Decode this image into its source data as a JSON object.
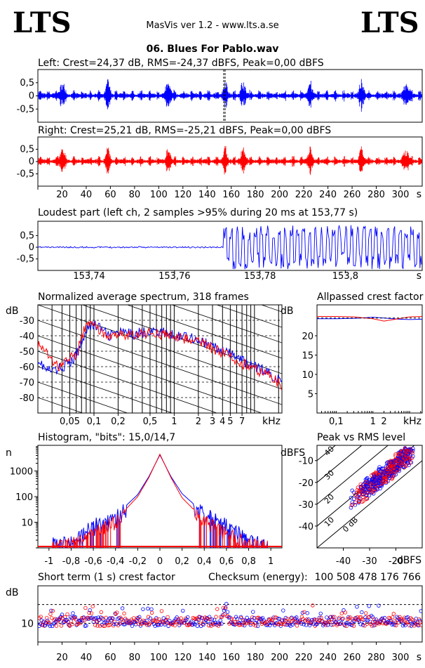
{
  "header": {
    "brand_left": "LTS",
    "brand_right": "LTS",
    "app_title": "MasVis ver 1.2 - www.lts.a.se",
    "file_name": "06. Blues For Pablo.wav"
  },
  "colors": {
    "left": "#0000ff",
    "right": "#ff0000",
    "axis": "#000000"
  },
  "chart_data": [
    {
      "type": "line",
      "id": "left_waveform",
      "title": "Left: Crest=24,37 dB, RMS=-24,37 dBFS, Peak=0,00 dBFS",
      "y_ticks": [
        0.5,
        0,
        -0.5
      ],
      "y_tick_labels": [
        "0,5",
        "0",
        "-0,5"
      ],
      "ylim": [
        -1,
        1
      ],
      "xlim": [
        0,
        318
      ],
      "marker_x": 153.77,
      "peak_times": [
        20,
        58,
        108,
        155,
        170,
        225,
        268,
        305
      ]
    },
    {
      "type": "line",
      "id": "right_waveform",
      "title": "Right: Crest=25,21 dB, RMS=-25,21 dBFS, Peak=0,00 dBFS",
      "y_ticks": [
        0.5,
        0,
        -0.5
      ],
      "y_tick_labels": [
        "0,5",
        "0",
        "-0,5"
      ],
      "ylim": [
        -1,
        1
      ],
      "xlim": [
        0,
        318
      ],
      "x_ticks": [
        20,
        40,
        60,
        80,
        100,
        120,
        140,
        160,
        180,
        200,
        220,
        240,
        260,
        280,
        300
      ],
      "x_unit": "s"
    },
    {
      "type": "line",
      "id": "loudest_part",
      "title": "Loudest part (left  ch, 2 samples >95% during 20 ms at 153,77 s)",
      "y_tick_labels": [
        "0,5",
        "0",
        "-0,5"
      ],
      "ylim": [
        -1,
        1
      ],
      "xlim": [
        153.728,
        153.818
      ],
      "x_ticks": [
        153.74,
        153.76,
        153.78,
        153.8
      ],
      "x_tick_labels": [
        "153,74",
        "153,76",
        "153,78",
        "153,8"
      ],
      "x_unit": "s",
      "onset_x": 153.7715
    },
    {
      "type": "line",
      "id": "spectrum",
      "title": "Normalized average spectrum, 318 frames",
      "ylabel": "dB",
      "y_ticks": [
        -30,
        -40,
        -50,
        -60,
        -70,
        -80
      ],
      "ylim": [
        -90,
        -20
      ],
      "x_scale": "log",
      "xlim": [
        0.02,
        22
      ],
      "x_ticks": [
        0.05,
        0.1,
        0.2,
        0.5,
        1,
        2,
        3,
        4,
        5,
        7
      ],
      "x_tick_labels": [
        "0,05",
        "0,1",
        "0,2",
        "0,5",
        "1",
        "2",
        "3",
        "4",
        "5",
        "7"
      ],
      "x_unit": "kHz",
      "series": [
        {
          "color": "#0000ff",
          "x": [
            0.02,
            0.025,
            0.03,
            0.035,
            0.04,
            0.05,
            0.06,
            0.07,
            0.08,
            0.1,
            0.12,
            0.15,
            0.2,
            0.3,
            0.5,
            0.7,
            1,
            1.5,
            2,
            3,
            4,
            5,
            7,
            10,
            15,
            22
          ],
          "values": [
            -55,
            -62,
            -63,
            -62,
            -60,
            -58,
            -53,
            -45,
            -35,
            -33,
            -35,
            -40,
            -38,
            -39,
            -37,
            -38,
            -40,
            -40,
            -43,
            -47,
            -50,
            -52,
            -56,
            -60,
            -64,
            -70
          ]
        },
        {
          "color": "#ff0000",
          "x": [
            0.02,
            0.025,
            0.03,
            0.035,
            0.04,
            0.05,
            0.06,
            0.07,
            0.08,
            0.1,
            0.12,
            0.15,
            0.2,
            0.3,
            0.5,
            0.7,
            1,
            1.5,
            2,
            3,
            4,
            5,
            7,
            10,
            15,
            22
          ],
          "values": [
            -45,
            -49,
            -55,
            -60,
            -58,
            -55,
            -52,
            -42,
            -32,
            -34,
            -36,
            -42,
            -39,
            -40,
            -38,
            -39,
            -41,
            -42,
            -44,
            -48,
            -51,
            -54,
            -58,
            -62,
            -65,
            -72
          ]
        }
      ]
    },
    {
      "type": "line",
      "id": "allpassed_crest",
      "title": "Allpassed crest factor",
      "ylabel": "dB",
      "y_ticks": [
        20,
        15,
        10,
        5
      ],
      "ylim": [
        0,
        28
      ],
      "x_scale": "log",
      "xlim": [
        0.03,
        22
      ],
      "x_ticks": [
        0.1,
        1,
        2
      ],
      "x_tick_labels": [
        "0,1",
        "1",
        "2"
      ],
      "x_unit": "kHz",
      "series": [
        {
          "color": "#0000ff",
          "x": [
            0.03,
            0.1,
            0.3,
            1,
            2,
            5,
            10,
            22
          ],
          "values": [
            24.4,
            24.4,
            24.5,
            24.8,
            24.6,
            24.3,
            24.2,
            24.3
          ]
        },
        {
          "color": "#ff0000",
          "x": [
            0.03,
            0.1,
            0.3,
            1,
            2,
            5,
            10,
            22
          ],
          "values": [
            25.0,
            25.0,
            24.9,
            24.4,
            23.8,
            24.4,
            24.9,
            25.0
          ]
        }
      ]
    },
    {
      "type": "line",
      "id": "histogram",
      "title": "Histogram, \"bits\": 15,0/14,7",
      "ylabel": "n",
      "y_scale": "log",
      "ylim": [
        1,
        10000
      ],
      "y_ticks": [
        1000,
        100,
        10
      ],
      "y_tick_labels": [
        "1000",
        "100",
        "10"
      ],
      "xlim": [
        -1.1,
        1.1
      ],
      "x_ticks": [
        -1,
        -0.8,
        -0.6,
        -0.4,
        -0.2,
        0,
        0.2,
        0.4,
        0.6,
        0.8,
        1
      ],
      "x_tick_labels": [
        "-1",
        "-0,8",
        "-0,6",
        "-0,4",
        "-0,2",
        "0",
        "0,2",
        "0,4",
        "0,6",
        "0,8",
        "1"
      ],
      "series": [
        {
          "color": "#0000ff",
          "x": [
            -0.95,
            -0.8,
            -0.6,
            -0.4,
            -0.2,
            -0.1,
            0,
            0.1,
            0.2,
            0.4,
            0.6,
            0.8,
            0.95
          ],
          "values": [
            1.5,
            2,
            8,
            18,
            120,
            600,
            4200,
            600,
            130,
            22,
            10,
            2,
            1.5
          ]
        },
        {
          "color": "#ff0000",
          "x": [
            -0.95,
            -0.8,
            -0.6,
            -0.4,
            -0.2,
            -0.1,
            0,
            0.1,
            0.2,
            0.4,
            0.6,
            0.8,
            0.95
          ],
          "values": [
            1.2,
            1.5,
            4,
            12,
            100,
            550,
            4500,
            550,
            90,
            12,
            4,
            1.5,
            1.2
          ]
        }
      ]
    },
    {
      "type": "scatter",
      "id": "peak_vs_rms",
      "title": "Peak vs RMS level",
      "ylabel": "dBFS",
      "xlabel": "dBFS",
      "xlim": [
        -50,
        -10
      ],
      "ylim": [
        -50,
        -3
      ],
      "x_ticks": [
        -40,
        -30,
        -20
      ],
      "y_ticks": [
        -10,
        -20,
        -30,
        -40
      ],
      "diagonal_labels": [
        "40",
        "30",
        "20",
        "10",
        "0 dB"
      ],
      "trend": {
        "x_from": -40,
        "x_to": -15,
        "y_from": -32,
        "y_to": -7
      }
    },
    {
      "type": "scatter",
      "id": "short_term_crest",
      "title": "Short term (1 s) crest factor",
      "ylabel": "dB",
      "y_ticks": [
        10
      ],
      "ylim": [
        0,
        30
      ],
      "dashed_lines": [
        20,
        10
      ],
      "xlim": [
        0,
        318
      ],
      "x_ticks": [
        20,
        40,
        60,
        80,
        100,
        120,
        140,
        160,
        180,
        200,
        220,
        240,
        260,
        280,
        300
      ],
      "x_unit": "s",
      "checksum_label": "Checksum (energy):",
      "checksum_value": "100 508 478 176 766"
    }
  ]
}
